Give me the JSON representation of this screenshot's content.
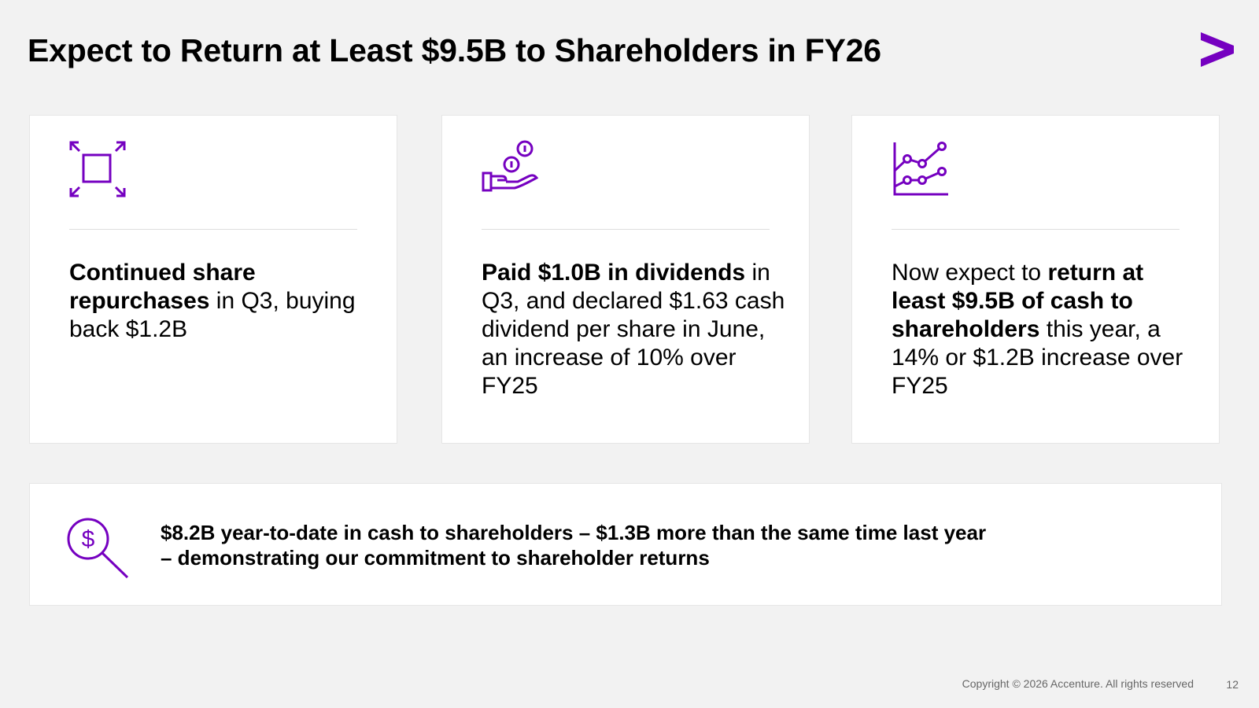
{
  "slide": {
    "title": "Expect to Return at Least $9.5B to Shareholders in FY26"
  },
  "brand": {
    "accent_color": "#7500c0",
    "logo_icon": "accenture-greater-than-logo-icon"
  },
  "cards": [
    {
      "icon": "expand-arrows-icon",
      "segments": [
        {
          "text": "Continued share repurchases",
          "bold": true
        },
        {
          "text": " in Q3, buying back $1.2B",
          "bold": false
        }
      ]
    },
    {
      "icon": "hand-coins-icon",
      "segments": [
        {
          "text": "Paid $1.0B in dividends",
          "bold": true
        },
        {
          "text": " in Q3, and declared $1.63 cash dividend per share in June, an increase of 10% over FY25",
          "bold": false
        }
      ]
    },
    {
      "icon": "line-chart-icon",
      "segments": [
        {
          "text": "Now expect to ",
          "bold": false
        },
        {
          "text": "return at least $9.5B of cash to shareholders",
          "bold": true
        },
        {
          "text": " this year, a 14% or $1.2B increase over FY25",
          "bold": false
        }
      ]
    }
  ],
  "summary": {
    "icon": "dollar-magnifier-icon",
    "line1": "$8.2B year-to-date in cash to shareholders – $1.3B more than the same time last year",
    "line2": "– demonstrating our commitment to shareholder returns"
  },
  "footer": {
    "copyright": "Copyright © 2026 Accenture. All rights reserved",
    "page_number": "12"
  }
}
